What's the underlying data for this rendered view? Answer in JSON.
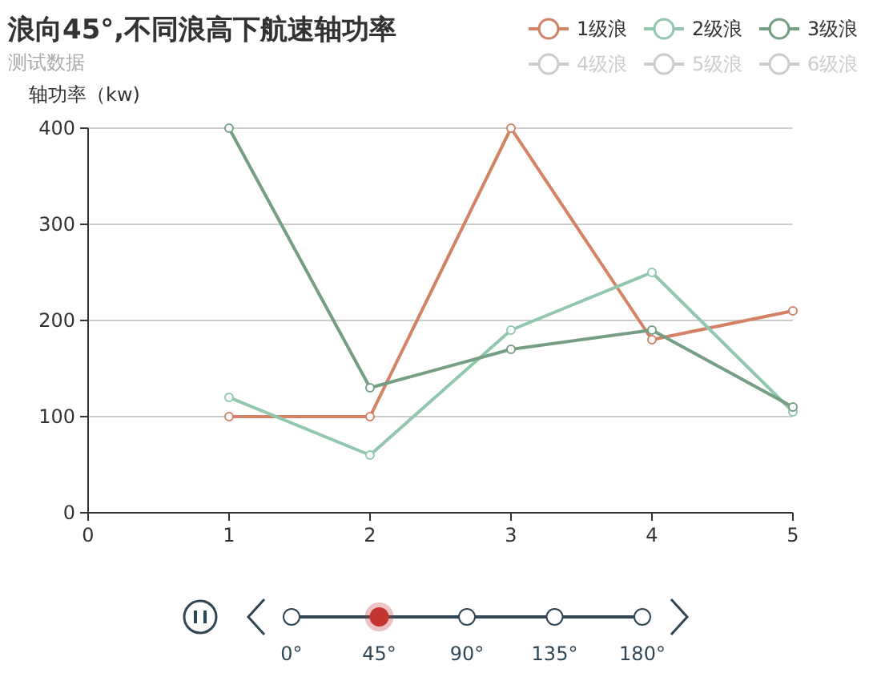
{
  "chart_data": {
    "type": "line",
    "title": "浪向45°,不同浪高下航速轴功率",
    "subtitle": "测试数据",
    "ylabel": "轴功率（kw)",
    "x": [
      1,
      2,
      3,
      4,
      5
    ],
    "xlim": [
      0,
      5
    ],
    "xticks": [
      0,
      1,
      2,
      3,
      4,
      5
    ],
    "ylim": [
      0,
      400
    ],
    "yticks": [
      0,
      100,
      200,
      300,
      400
    ],
    "grid": "y",
    "legend": "top right",
    "marker": "circle",
    "series": [
      {
        "name": "1级浪",
        "color": "#d48265",
        "values": [
          100,
          100,
          400,
          180,
          210
        ]
      },
      {
        "name": "2级浪",
        "color": "#91c7ae",
        "values": [
          120,
          60,
          190,
          250,
          105
        ]
      },
      {
        "name": "3级浪",
        "color": "#749f83",
        "values": [
          400,
          130,
          170,
          190,
          110
        ]
      },
      {
        "name": "4级浪",
        "color": "#cccccc",
        "values": [
          null,
          null,
          null,
          null,
          null
        ]
      },
      {
        "name": "5级浪",
        "color": "#cccccc",
        "values": [
          null,
          null,
          null,
          null,
          null
        ]
      },
      {
        "name": "6级浪",
        "color": "#cccccc",
        "values": [
          null,
          null,
          null,
          null,
          null
        ]
      }
    ],
    "annotations": [
      "0°",
      "45°",
      "90°",
      "135°",
      "180°"
    ]
  }
}
